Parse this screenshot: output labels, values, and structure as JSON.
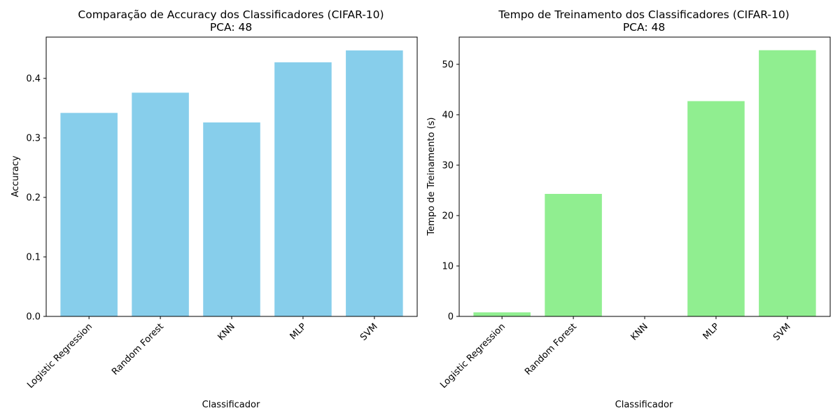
{
  "chart_data": [
    {
      "type": "bar",
      "title": "Comparação de Accuracy dos Classificadores (CIFAR-10)",
      "subtitle": "PCA: 48",
      "xlabel": "Classificador",
      "ylabel": "Accuracy",
      "categories": [
        "Logistic Regression",
        "Random Forest",
        "KNN",
        "MLP",
        "SVM"
      ],
      "values": [
        0.342,
        0.376,
        0.326,
        0.427,
        0.447
      ],
      "ylim": [
        0,
        0.4694
      ],
      "yticks": [
        0.0,
        0.1,
        0.2,
        0.3,
        0.4
      ],
      "ytick_labels": [
        "0.0",
        "0.1",
        "0.2",
        "0.3",
        "0.4"
      ],
      "bar_color": "#87ceeb",
      "grid": false
    },
    {
      "type": "bar",
      "title": "Tempo de Treinamento dos Classificadores (CIFAR-10)",
      "subtitle": "PCA: 48",
      "xlabel": "Classificador",
      "ylabel": "Tempo de Treinamento (s)",
      "categories": [
        "Logistic Regression",
        "Random Forest",
        "KNN",
        "MLP",
        "SVM"
      ],
      "values": [
        0.8,
        24.3,
        0.01,
        42.7,
        52.8
      ],
      "ylim": [
        0,
        55.4
      ],
      "yticks": [
        0,
        10,
        20,
        30,
        40,
        50
      ],
      "ytick_labels": [
        "0",
        "10",
        "20",
        "30",
        "40",
        "50"
      ],
      "bar_color": "#90ee90",
      "grid": false
    }
  ]
}
